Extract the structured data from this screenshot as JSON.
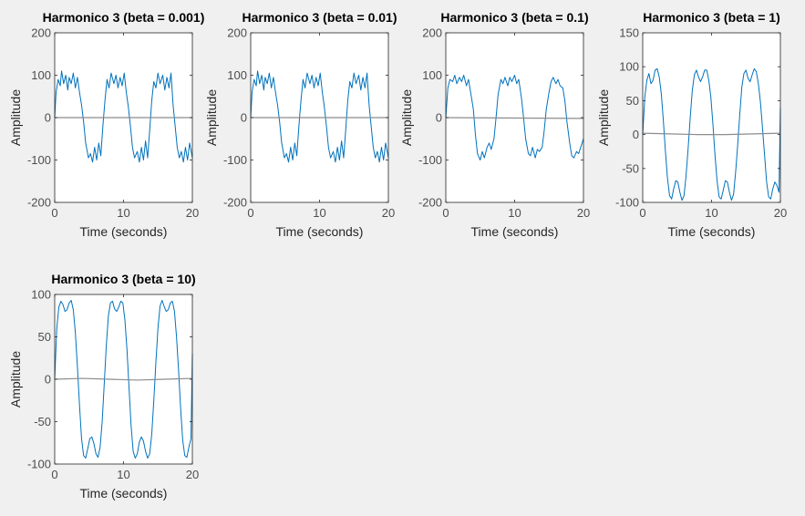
{
  "colors": {
    "background": "#f0f0f0",
    "plot_area": "#ffffff",
    "axis": "#262626",
    "tick_label": "#4d4d4d",
    "series_main": "#0072bd",
    "series_secondary": "#8c8c8c"
  },
  "chart_data": [
    {
      "type": "line",
      "title": "Harmonico 3 (beta = 0.001)",
      "xlabel": "Time (seconds)",
      "ylabel": "Amplitude",
      "xlim": [
        0,
        20
      ],
      "ylim": [
        -200,
        200
      ],
      "xticks": [
        0,
        10,
        20
      ],
      "yticks": [
        -200,
        -100,
        0,
        100,
        200
      ],
      "grid": false,
      "series": [
        {
          "x": [
            0,
            0.2,
            0.5,
            0.8,
            1.0,
            1.3,
            1.6,
            1.9,
            2.1,
            2.4,
            2.7,
            3.0,
            3.3,
            3.6,
            3.9,
            4.2,
            4.5,
            4.9,
            5.2,
            5.5,
            5.8,
            6.1,
            6.4,
            6.7,
            7.0,
            7.3,
            7.6,
            7.9,
            8.2,
            8.6,
            8.9,
            9.2,
            9.5,
            9.8,
            10.1,
            10.4,
            10.7,
            11.0,
            11.3,
            11.6,
            12.0,
            12.3,
            12.6,
            12.9,
            13.2,
            13.5,
            13.8,
            14.1,
            14.4,
            14.7,
            15.0,
            15.3,
            15.7,
            16.0,
            16.3,
            16.6,
            16.9,
            17.2,
            17.5,
            17.8,
            18.1,
            18.4,
            18.7,
            19.0,
            19.3,
            19.6,
            20.0
          ],
          "y": [
            0,
            60,
            90,
            75,
            110,
            80,
            100,
            65,
            95,
            80,
            105,
            70,
            95,
            60,
            30,
            -10,
            -60,
            -95,
            -85,
            -105,
            -70,
            -100,
            -60,
            -90,
            -20,
            40,
            90,
            70,
            105,
            80,
            100,
            70,
            95,
            75,
            105,
            60,
            25,
            -20,
            -70,
            -95,
            -80,
            -105,
            -70,
            -100,
            -55,
            -95,
            -30,
            40,
            85,
            70,
            105,
            80,
            100,
            65,
            95,
            70,
            105,
            30,
            -20,
            -70,
            -95,
            -80,
            -105,
            -70,
            -100,
            -60,
            -95
          ]
        },
        {
          "x": [
            0,
            20
          ],
          "y": [
            0,
            0
          ]
        }
      ]
    },
    {
      "type": "line",
      "title": "Harmonico 3 (beta = 0.01)",
      "xlabel": "Time (seconds)",
      "ylabel": "Amplitude",
      "xlim": [
        0,
        20
      ],
      "ylim": [
        -200,
        200
      ],
      "xticks": [
        0,
        10,
        20
      ],
      "yticks": [
        -200,
        -100,
        0,
        100,
        200
      ],
      "grid": false,
      "series": [
        {
          "x": [
            0,
            0.2,
            0.5,
            0.8,
            1.0,
            1.3,
            1.6,
            1.9,
            2.1,
            2.4,
            2.7,
            3.0,
            3.3,
            3.6,
            3.9,
            4.2,
            4.5,
            4.9,
            5.2,
            5.5,
            5.8,
            6.1,
            6.4,
            6.7,
            7.0,
            7.3,
            7.6,
            7.9,
            8.2,
            8.6,
            8.9,
            9.2,
            9.5,
            9.8,
            10.1,
            10.4,
            10.7,
            11.0,
            11.3,
            11.6,
            12.0,
            12.3,
            12.6,
            12.9,
            13.2,
            13.5,
            13.8,
            14.1,
            14.4,
            14.7,
            15.0,
            15.3,
            15.7,
            16.0,
            16.3,
            16.6,
            16.9,
            17.2,
            17.5,
            17.8,
            18.1,
            18.4,
            18.7,
            19.0,
            19.3,
            19.6,
            20.0
          ],
          "y": [
            0,
            60,
            90,
            75,
            110,
            80,
            100,
            65,
            95,
            80,
            105,
            70,
            95,
            60,
            30,
            -10,
            -60,
            -95,
            -85,
            -105,
            -70,
            -100,
            -60,
            -90,
            -20,
            40,
            90,
            70,
            105,
            80,
            100,
            70,
            95,
            75,
            105,
            60,
            25,
            -20,
            -70,
            -95,
            -80,
            -105,
            -70,
            -100,
            -55,
            -95,
            -30,
            40,
            85,
            70,
            105,
            80,
            100,
            65,
            95,
            70,
            105,
            30,
            -20,
            -70,
            -95,
            -80,
            -105,
            -70,
            -100,
            -60,
            -95
          ]
        },
        {
          "x": [
            0,
            20
          ],
          "y": [
            0,
            0
          ]
        }
      ]
    },
    {
      "type": "line",
      "title": "Harmonico 3 (beta = 0.1)",
      "xlabel": "Time (seconds)",
      "ylabel": "Amplitude",
      "xlim": [
        0,
        20
      ],
      "ylim": [
        -200,
        200
      ],
      "xticks": [
        0,
        10,
        20
      ],
      "yticks": [
        -200,
        -100,
        0,
        100,
        200
      ],
      "grid": false,
      "series": [
        {
          "x": [
            0,
            0.3,
            0.6,
            1.0,
            1.3,
            1.6,
            2.0,
            2.3,
            2.6,
            3.0,
            3.3,
            3.6,
            4.0,
            4.3,
            4.6,
            5.0,
            5.3,
            5.6,
            6.0,
            6.3,
            6.6,
            7.0,
            7.3,
            7.6,
            8.0,
            8.3,
            8.6,
            9.0,
            9.3,
            9.6,
            10.0,
            10.3,
            10.6,
            11.0,
            11.3,
            11.6,
            12.0,
            12.3,
            12.6,
            13.0,
            13.3,
            13.6,
            14.0,
            14.3,
            14.6,
            15.0,
            15.3,
            15.6,
            16.0,
            16.3,
            16.6,
            17.0,
            17.3,
            17.6,
            18.0,
            18.3,
            18.6,
            19.0,
            19.3,
            19.6,
            20.0
          ],
          "y": [
            0,
            70,
            90,
            85,
            100,
            80,
            95,
            85,
            100,
            75,
            90,
            60,
            20,
            -40,
            -85,
            -100,
            -80,
            -95,
            -70,
            -60,
            -75,
            -50,
            0,
            55,
            90,
            80,
            95,
            75,
            95,
            85,
            100,
            80,
            90,
            45,
            0,
            -50,
            -85,
            -90,
            -70,
            -95,
            -75,
            -80,
            -70,
            -30,
            20,
            60,
            85,
            95,
            80,
            90,
            75,
            70,
            40,
            -10,
            -60,
            -90,
            -95,
            -80,
            -85,
            -70,
            -50
          ]
        },
        {
          "x": [
            0,
            20
          ],
          "y": [
            0,
            -2
          ]
        }
      ]
    },
    {
      "type": "line",
      "title": "Harmonico 3 (beta = 1)",
      "xlabel": "Time (seconds)",
      "ylabel": "Amplitude",
      "xlim": [
        0,
        20
      ],
      "ylim": [
        -100,
        150
      ],
      "xticks": [
        0,
        10,
        20
      ],
      "yticks": [
        -100,
        -50,
        0,
        50,
        100,
        150
      ],
      "grid": false,
      "series": [
        {
          "x": [
            0,
            0.3,
            0.6,
            0.9,
            1.2,
            1.5,
            1.8,
            2.1,
            2.4,
            2.7,
            3.0,
            3.3,
            3.6,
            3.9,
            4.2,
            4.5,
            4.8,
            5.1,
            5.4,
            5.7,
            6.0,
            6.3,
            6.6,
            6.9,
            7.2,
            7.5,
            7.8,
            8.1,
            8.4,
            8.7,
            9.0,
            9.3,
            9.6,
            9.9,
            10.2,
            10.5,
            10.8,
            11.1,
            11.4,
            11.7,
            12.0,
            12.3,
            12.6,
            12.9,
            13.2,
            13.5,
            13.8,
            14.1,
            14.4,
            14.7,
            15.0,
            15.3,
            15.6,
            15.9,
            16.2,
            16.5,
            16.8,
            17.1,
            17.4,
            17.7,
            18.0,
            18.3,
            18.6,
            18.9,
            19.2,
            19.5,
            19.8,
            20.0
          ],
          "y": [
            0,
            55,
            80,
            90,
            75,
            80,
            95,
            97,
            85,
            60,
            20,
            -25,
            -65,
            -90,
            -95,
            -80,
            -68,
            -70,
            -85,
            -97,
            -90,
            -60,
            -20,
            25,
            65,
            88,
            95,
            85,
            78,
            85,
            95,
            95,
            80,
            55,
            15,
            -30,
            -68,
            -92,
            -95,
            -82,
            -68,
            -70,
            -85,
            -97,
            -88,
            -55,
            -15,
            30,
            70,
            90,
            95,
            83,
            78,
            88,
            97,
            93,
            75,
            48,
            10,
            -30,
            -70,
            -92,
            -95,
            -80,
            -70,
            -75,
            -85,
            40
          ]
        },
        {
          "x": [
            0,
            4,
            8,
            12,
            16,
            20
          ],
          "y": [
            2,
            1,
            0,
            0,
            1,
            2
          ]
        }
      ]
    },
    {
      "type": "line",
      "title": "Harmonico 3 (beta = 10)",
      "xlabel": "Time (seconds)",
      "ylabel": "Amplitude",
      "xlim": [
        0,
        20
      ],
      "ylim": [
        -100,
        100
      ],
      "xticks": [
        0,
        10,
        20
      ],
      "yticks": [
        -100,
        -50,
        0,
        50,
        100
      ],
      "grid": false,
      "series": [
        {
          "x": [
            0,
            0.3,
            0.6,
            0.9,
            1.2,
            1.5,
            1.8,
            2.1,
            2.4,
            2.7,
            3.0,
            3.3,
            3.6,
            3.9,
            4.2,
            4.5,
            4.8,
            5.1,
            5.4,
            5.7,
            6.0,
            6.3,
            6.6,
            6.9,
            7.2,
            7.5,
            7.8,
            8.1,
            8.4,
            8.7,
            9.0,
            9.3,
            9.6,
            9.9,
            10.2,
            10.5,
            10.8,
            11.1,
            11.4,
            11.7,
            12.0,
            12.3,
            12.6,
            12.9,
            13.2,
            13.5,
            13.8,
            14.1,
            14.4,
            14.7,
            15.0,
            15.3,
            15.6,
            15.9,
            16.2,
            16.5,
            16.8,
            17.1,
            17.4,
            17.7,
            18.0,
            18.3,
            18.6,
            18.9,
            19.2,
            19.5,
            19.8,
            20.0
          ],
          "y": [
            0,
            60,
            85,
            92,
            88,
            80,
            82,
            90,
            93,
            82,
            55,
            15,
            -30,
            -70,
            -90,
            -93,
            -82,
            -70,
            -68,
            -76,
            -88,
            -92,
            -80,
            -50,
            -5,
            40,
            75,
            90,
            92,
            83,
            80,
            85,
            92,
            90,
            70,
            35,
            -10,
            -55,
            -85,
            -93,
            -88,
            -74,
            -68,
            -73,
            -85,
            -93,
            -88,
            -65,
            -25,
            20,
            60,
            86,
            93,
            86,
            80,
            82,
            90,
            92,
            80,
            50,
            10,
            -35,
            -72,
            -90,
            -92,
            -80,
            -70,
            30
          ]
        },
        {
          "x": [
            0,
            4,
            8,
            12,
            16,
            20
          ],
          "y": [
            0,
            1,
            0,
            -1,
            0,
            1
          ]
        }
      ]
    }
  ]
}
